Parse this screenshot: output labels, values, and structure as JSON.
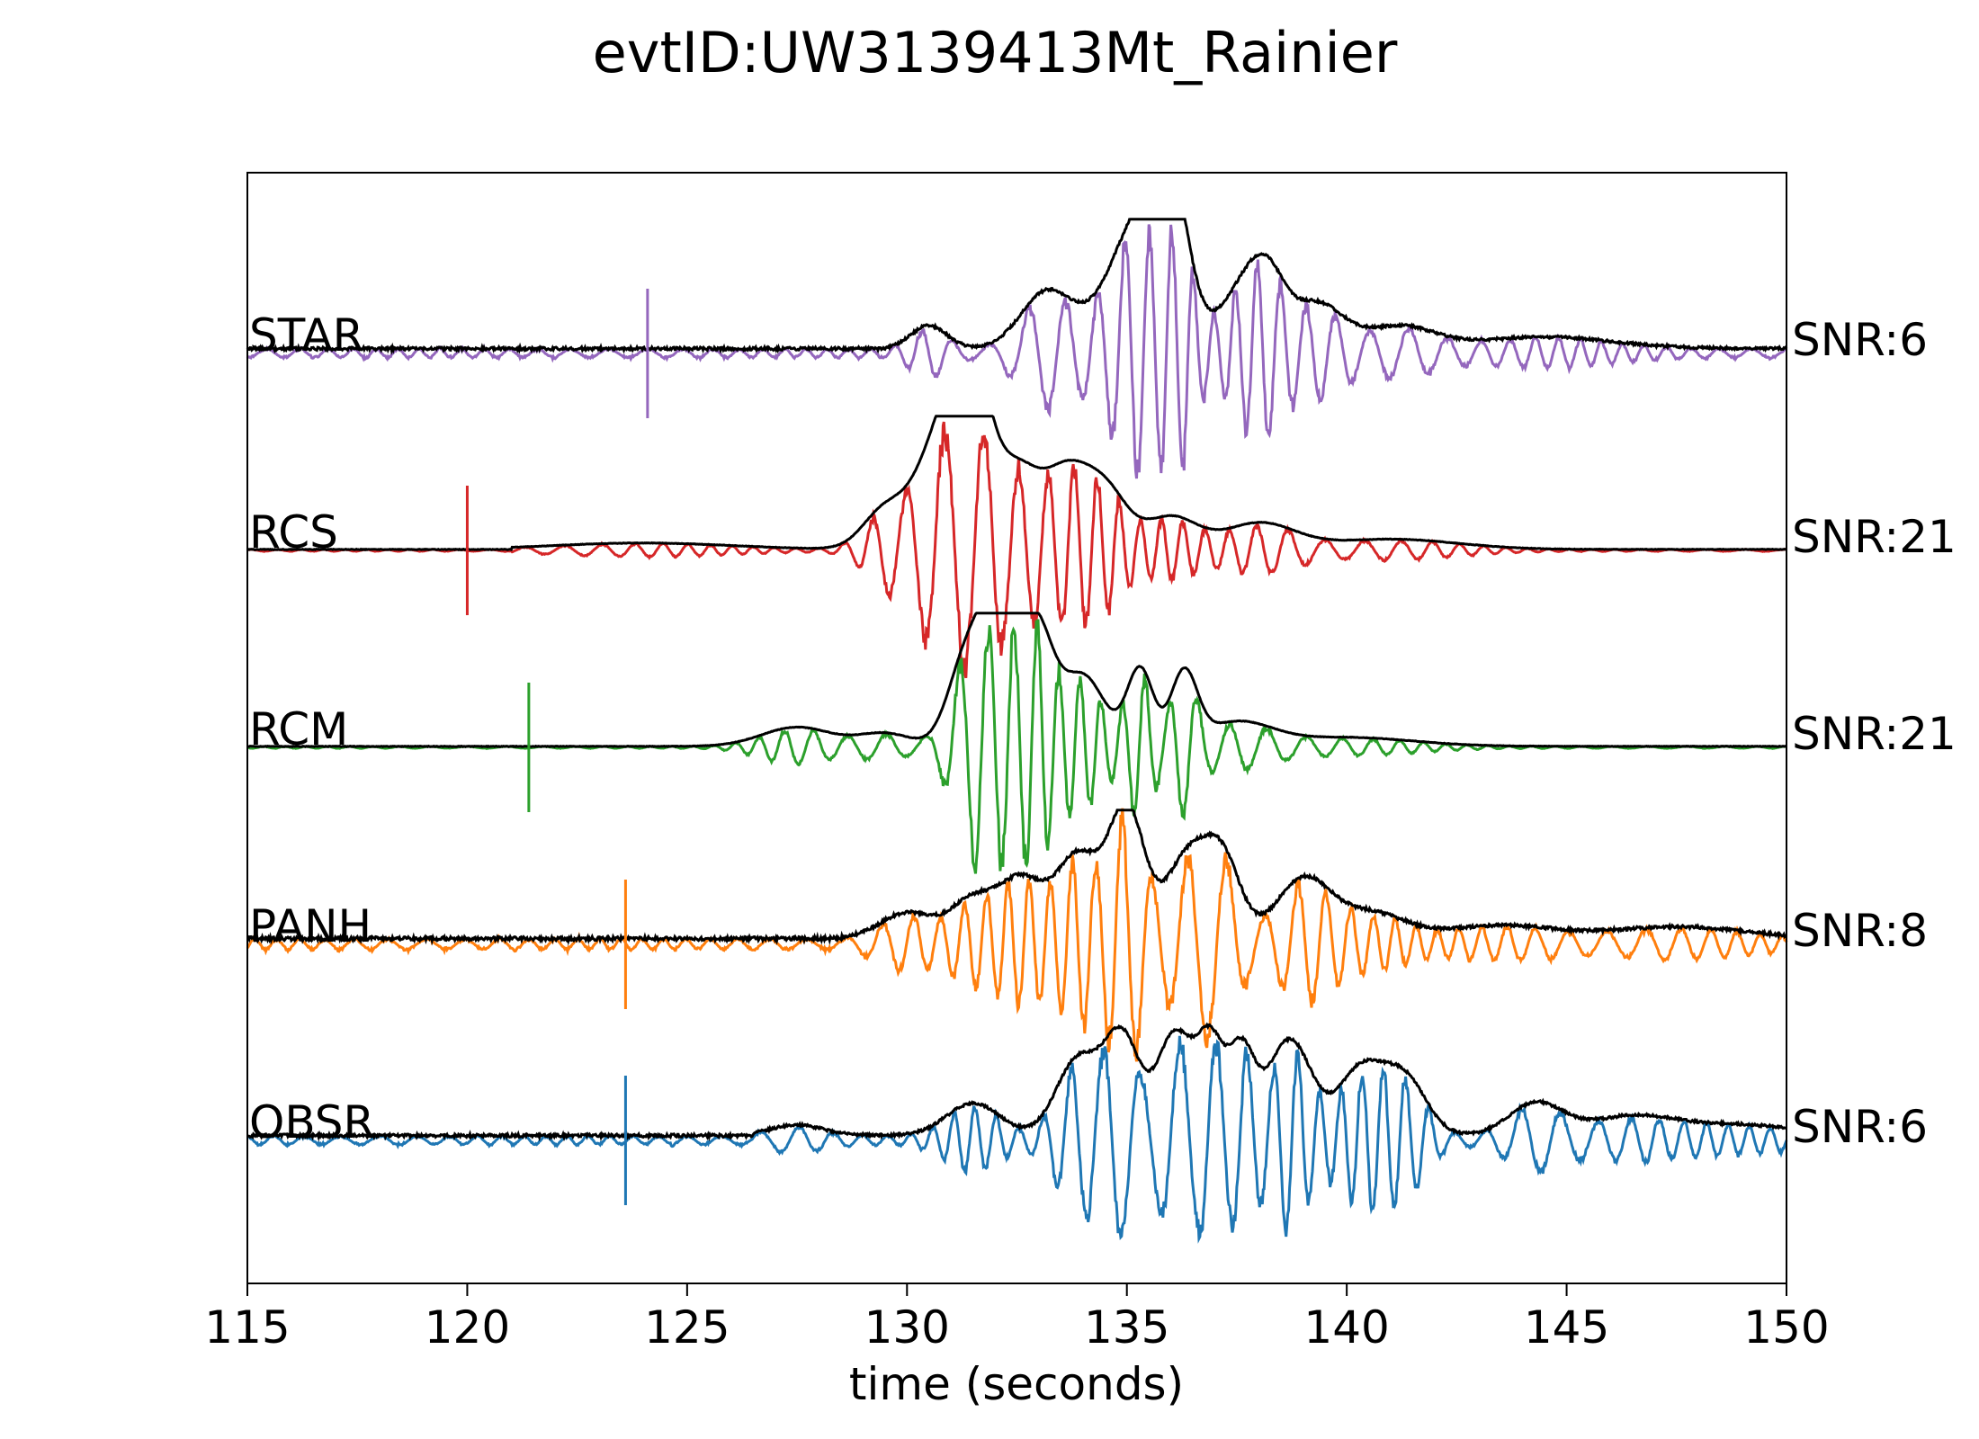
{
  "chart_data": {
    "type": "line",
    "title": "evtID:UW3139413Mt_Rainier",
    "xlabel": "time (seconds)",
    "ylabel": "",
    "xlim": [
      115,
      150
    ],
    "xticks": [
      115,
      120,
      125,
      130,
      135,
      140,
      145,
      150
    ],
    "grid": false,
    "envelope_color": "#000000",
    "series": [
      {
        "name": "STAR",
        "snr_label": "SNR:6",
        "color": "#9467bd",
        "pick_time": 124.1,
        "noise": 0.05,
        "signal_start": 129.5,
        "bursts": [
          {
            "t": 130.5,
            "a": 0.18,
            "w": 0.4
          },
          {
            "t": 133.2,
            "a": 0.45,
            "w": 0.6
          },
          {
            "t": 135.3,
            "a": 1.0,
            "w": 0.7
          },
          {
            "t": 136.0,
            "a": 0.9,
            "w": 0.4
          },
          {
            "t": 137.6,
            "a": 0.42,
            "w": 0.5
          },
          {
            "t": 138.2,
            "a": 0.45,
            "w": 0.4
          },
          {
            "t": 139.3,
            "a": 0.35,
            "w": 0.6
          },
          {
            "t": 141.2,
            "a": 0.17,
            "w": 0.8
          },
          {
            "t": 144.5,
            "a": 0.09,
            "w": 1.5
          }
        ]
      },
      {
        "name": "RCS",
        "snr_label": "SNR:21",
        "color": "#d62728",
        "pick_time": 120.0,
        "noise": 0.01,
        "signal_start": 121.0,
        "bursts": [
          {
            "t": 124.0,
            "a": 0.05,
            "w": 2.0
          },
          {
            "t": 129.5,
            "a": 0.3,
            "w": 0.5
          },
          {
            "t": 130.9,
            "a": 1.0,
            "w": 0.6
          },
          {
            "t": 131.5,
            "a": 0.95,
            "w": 0.4
          },
          {
            "t": 132.5,
            "a": 0.6,
            "w": 0.5
          },
          {
            "t": 133.6,
            "a": 0.55,
            "w": 0.5
          },
          {
            "t": 134.5,
            "a": 0.45,
            "w": 0.5
          },
          {
            "t": 136.0,
            "a": 0.25,
            "w": 0.6
          },
          {
            "t": 138.0,
            "a": 0.2,
            "w": 0.8
          },
          {
            "t": 141.0,
            "a": 0.08,
            "w": 1.5
          }
        ]
      },
      {
        "name": "RCM",
        "snr_label": "SNR:21",
        "color": "#2ca02c",
        "pick_time": 121.4,
        "noise": 0.01,
        "signal_start": 122.0,
        "bursts": [
          {
            "t": 127.5,
            "a": 0.15,
            "w": 0.8
          },
          {
            "t": 129.5,
            "a": 0.1,
            "w": 0.6
          },
          {
            "t": 131.3,
            "a": 0.6,
            "w": 0.4
          },
          {
            "t": 132.0,
            "a": 1.0,
            "w": 0.4
          },
          {
            "t": 132.9,
            "a": 0.95,
            "w": 0.4
          },
          {
            "t": 134.0,
            "a": 0.55,
            "w": 0.5
          },
          {
            "t": 135.3,
            "a": 0.6,
            "w": 0.3
          },
          {
            "t": 136.3,
            "a": 0.55,
            "w": 0.3
          },
          {
            "t": 137.5,
            "a": 0.18,
            "w": 0.8
          },
          {
            "t": 140.0,
            "a": 0.07,
            "w": 1.5
          }
        ]
      },
      {
        "name": "PANH",
        "snr_label": "SNR:8",
        "color": "#ff7f0e",
        "pick_time": 123.6,
        "noise": 0.06,
        "signal_start": 128.5,
        "bursts": [
          {
            "t": 130.0,
            "a": 0.2,
            "w": 0.6
          },
          {
            "t": 131.5,
            "a": 0.3,
            "w": 0.5
          },
          {
            "t": 132.6,
            "a": 0.45,
            "w": 0.5
          },
          {
            "t": 133.9,
            "a": 0.65,
            "w": 0.5
          },
          {
            "t": 135.0,
            "a": 1.0,
            "w": 0.4
          },
          {
            "t": 136.4,
            "a": 0.65,
            "w": 0.5
          },
          {
            "t": 137.2,
            "a": 0.55,
            "w": 0.4
          },
          {
            "t": 139.0,
            "a": 0.45,
            "w": 0.6
          },
          {
            "t": 140.5,
            "a": 0.2,
            "w": 0.8
          },
          {
            "t": 143.5,
            "a": 0.1,
            "w": 1.2
          },
          {
            "t": 147.5,
            "a": 0.09,
            "w": 1.5
          }
        ]
      },
      {
        "name": "OBSR",
        "snr_label": "SNR:6",
        "color": "#1f77b4",
        "pick_time": 123.6,
        "noise": 0.05,
        "signal_start": 126.5,
        "bursts": [
          {
            "t": 127.5,
            "a": 0.08,
            "w": 0.6
          },
          {
            "t": 131.5,
            "a": 0.25,
            "w": 0.6
          },
          {
            "t": 133.9,
            "a": 0.6,
            "w": 0.5
          },
          {
            "t": 134.9,
            "a": 0.75,
            "w": 0.4
          },
          {
            "t": 136.1,
            "a": 0.8,
            "w": 0.4
          },
          {
            "t": 136.9,
            "a": 0.7,
            "w": 0.3
          },
          {
            "t": 137.6,
            "a": 0.65,
            "w": 0.3
          },
          {
            "t": 138.7,
            "a": 0.75,
            "w": 0.5
          },
          {
            "t": 140.3,
            "a": 0.5,
            "w": 0.5
          },
          {
            "t": 141.3,
            "a": 0.45,
            "w": 0.5
          },
          {
            "t": 144.3,
            "a": 0.25,
            "w": 0.6
          },
          {
            "t": 146.5,
            "a": 0.15,
            "w": 1.0
          },
          {
            "t": 149.0,
            "a": 0.08,
            "w": 1.2
          }
        ]
      }
    ]
  }
}
